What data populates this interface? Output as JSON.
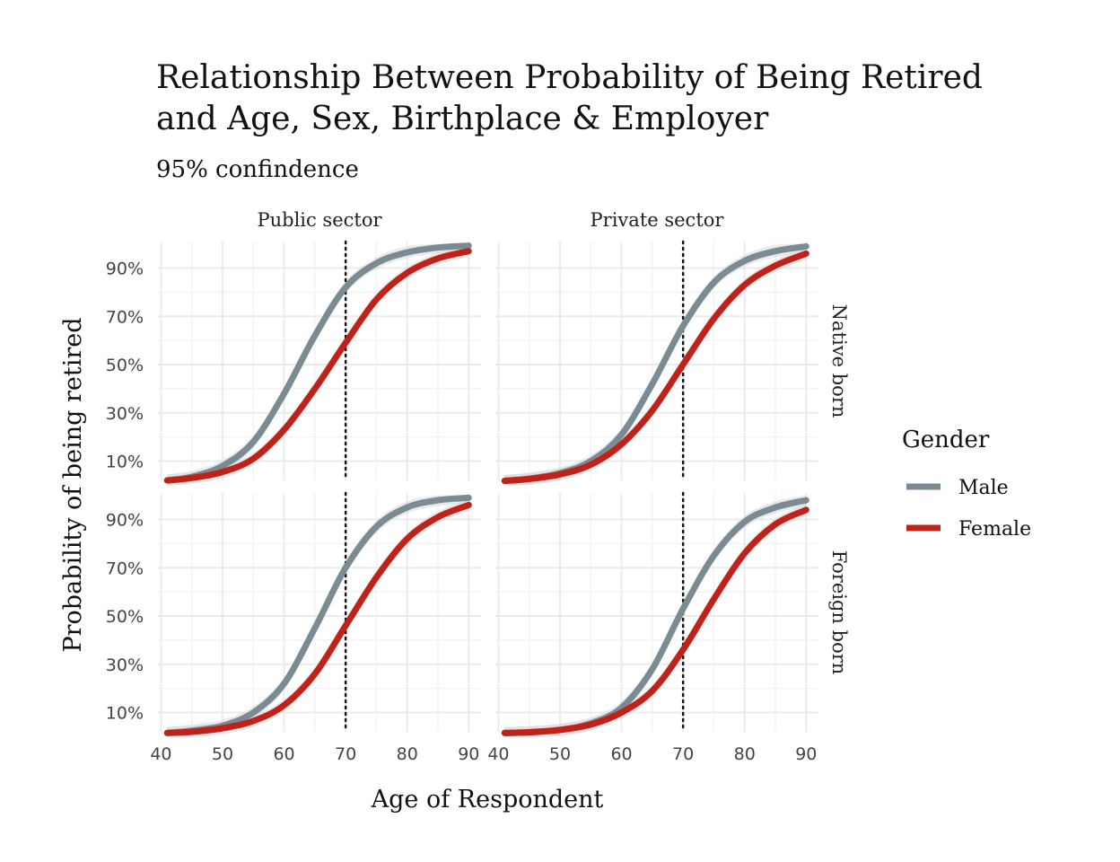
{
  "chart_data": {
    "type": "line",
    "title_lines": [
      "Relationship Between Probability of Being Retired",
      "and Age, Sex, Birthplace & Employer"
    ],
    "subtitle": "95% confindence",
    "xlabel": "Age of Respondent",
    "ylabel": "Probability of being retired",
    "xlim": [
      39.5,
      92
    ],
    "ylim": [
      0.02,
      1.01
    ],
    "x_ticks": [
      40,
      50,
      60,
      70,
      80,
      90
    ],
    "x_tick_labels": [
      "40",
      "50",
      "60",
      "70",
      "80",
      "90"
    ],
    "y_ticks": [
      0.1,
      0.3,
      0.5,
      0.7,
      0.9
    ],
    "y_tick_labels": [
      "10%",
      "30%",
      "50%",
      "70%",
      "90%"
    ],
    "reference_line_x": 70,
    "columns": [
      "Public sector",
      "Private sector"
    ],
    "rows": [
      "Native born",
      "Foreign born"
    ],
    "legend": {
      "title": "Gender",
      "position": "right",
      "items": [
        {
          "label": "Male",
          "color": "#7a8b93"
        },
        {
          "label": "Female",
          "color": "#c0221a"
        }
      ]
    },
    "colors": {
      "male": "#7a8b93",
      "female": "#c0221a",
      "band": "#d9d9d9",
      "grid": "#ebebeb"
    },
    "x": [
      41,
      45,
      50,
      55,
      60,
      65,
      70,
      75,
      80,
      85,
      90
    ],
    "panels": [
      {
        "column": "Public sector",
        "row": "Native born",
        "series": [
          {
            "name": "Male",
            "values": [
              0.02,
              0.035,
              0.08,
              0.18,
              0.38,
              0.62,
              0.82,
              0.92,
              0.965,
              0.985,
              0.993
            ]
          },
          {
            "name": "Female",
            "values": [
              0.02,
              0.03,
              0.055,
              0.11,
              0.23,
              0.4,
              0.59,
              0.77,
              0.88,
              0.94,
              0.97
            ]
          }
        ]
      },
      {
        "column": "Private sector",
        "row": "Native born",
        "series": [
          {
            "name": "Male",
            "values": [
              0.018,
              0.027,
              0.05,
              0.1,
              0.21,
              0.42,
              0.66,
              0.84,
              0.93,
              0.97,
              0.99
            ]
          },
          {
            "name": "Female",
            "values": [
              0.018,
              0.026,
              0.045,
              0.085,
              0.17,
              0.31,
              0.5,
              0.69,
              0.83,
              0.91,
              0.96
            ]
          }
        ]
      },
      {
        "column": "Public sector",
        "row": "Foreign born",
        "series": [
          {
            "name": "Male",
            "values": [
              0.015,
              0.025,
              0.045,
              0.1,
              0.22,
              0.45,
              0.7,
              0.87,
              0.95,
              0.98,
              0.99
            ]
          },
          {
            "name": "Female",
            "values": [
              0.015,
              0.02,
              0.035,
              0.065,
              0.13,
              0.26,
              0.46,
              0.66,
              0.82,
              0.91,
              0.96
            ]
          }
        ]
      },
      {
        "column": "Private sector",
        "row": "Foreign born",
        "series": [
          {
            "name": "Male",
            "values": [
              0.015,
              0.018,
              0.028,
              0.055,
              0.12,
              0.28,
              0.53,
              0.75,
              0.89,
              0.95,
              0.98
            ]
          },
          {
            "name": "Female",
            "values": [
              0.015,
              0.018,
              0.028,
              0.05,
              0.1,
              0.19,
              0.36,
              0.57,
              0.76,
              0.88,
              0.94
            ]
          }
        ]
      }
    ]
  }
}
